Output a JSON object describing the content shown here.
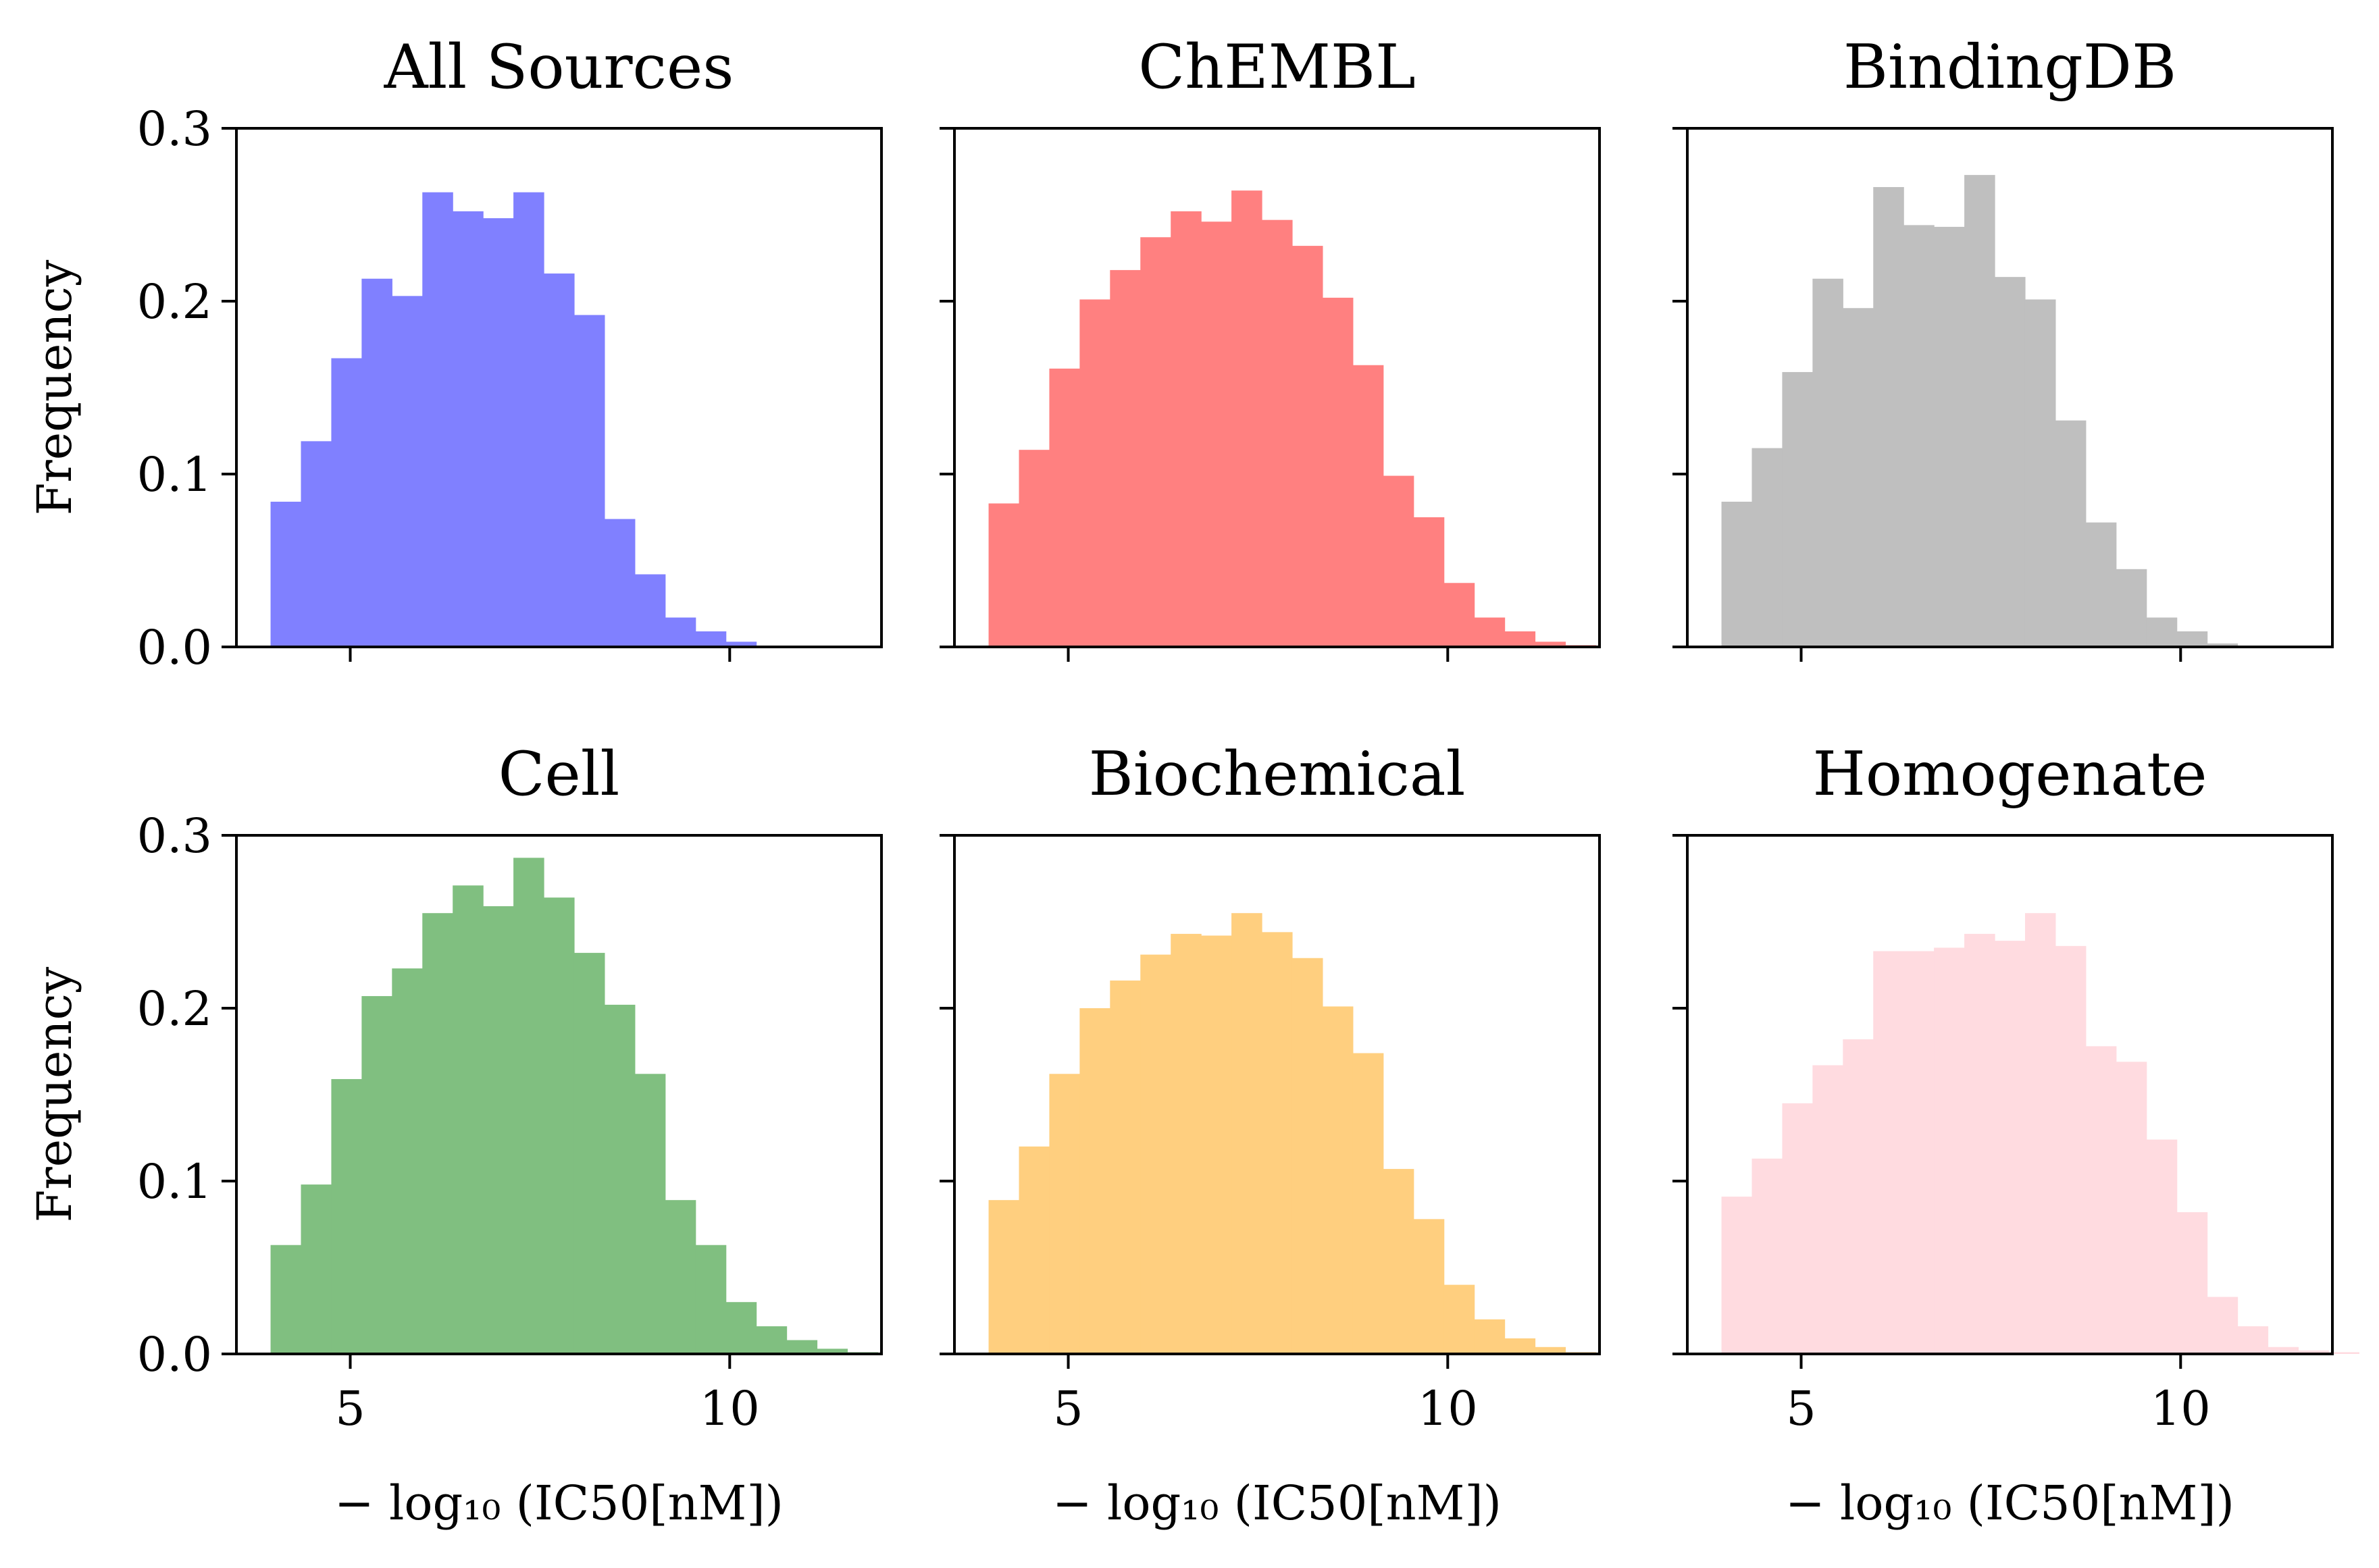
{
  "figure": {
    "bin_start": 3.95,
    "bin_width": 0.4,
    "y_ticks": [
      "0.0",
      "0.1",
      "0.2",
      "0.3"
    ],
    "x_ticks": [
      "5",
      "10"
    ],
    "ylabel": "Frequency",
    "xlabel": "− log₁₀ (IC50[nM])"
  },
  "chart_data": [
    {
      "type": "bar",
      "title": "All Sources",
      "color": "#8080ff",
      "xlim": [
        3.5,
        12
      ],
      "ylim": [
        0,
        0.3
      ],
      "x_ticks": [
        5,
        10
      ],
      "y_ticks": [
        0.0,
        0.1,
        0.2,
        0.3
      ],
      "values": [
        0.084,
        0.119,
        0.167,
        0.213,
        0.203,
        0.263,
        0.252,
        0.248,
        0.263,
        0.216,
        0.192,
        0.074,
        0.042,
        0.017,
        0.009,
        0.003
      ]
    },
    {
      "type": "bar",
      "title": "ChEMBL",
      "color": "#ff8080",
      "xlim": [
        3.5,
        12
      ],
      "ylim": [
        0,
        0.3
      ],
      "x_ticks": [
        5,
        10
      ],
      "y_ticks": [
        0.0,
        0.1,
        0.2,
        0.3
      ],
      "values": [
        0.083,
        0.114,
        0.161,
        0.201,
        0.218,
        0.237,
        0.252,
        0.246,
        0.264,
        0.247,
        0.232,
        0.202,
        0.163,
        0.099,
        0.075,
        0.037,
        0.017,
        0.009,
        0.003,
        0.001
      ]
    },
    {
      "type": "bar",
      "title": "BindingDB",
      "color": "#bfbfbf",
      "xlim": [
        3.5,
        12
      ],
      "ylim": [
        0,
        0.3
      ],
      "x_ticks": [
        5,
        10
      ],
      "y_ticks": [
        0.0,
        0.1,
        0.2,
        0.3
      ],
      "values": [
        0.084,
        0.115,
        0.159,
        0.213,
        0.196,
        0.266,
        0.244,
        0.243,
        0.273,
        0.214,
        0.201,
        0.131,
        0.072,
        0.045,
        0.017,
        0.009,
        0.002
      ]
    },
    {
      "type": "bar",
      "title": "Cell",
      "color": "#80bf80",
      "xlim": [
        3.5,
        12
      ],
      "ylim": [
        0,
        0.3
      ],
      "x_ticks": [
        5,
        10
      ],
      "y_ticks": [
        0.0,
        0.1,
        0.2,
        0.3
      ],
      "values": [
        0.063,
        0.098,
        0.159,
        0.207,
        0.223,
        0.255,
        0.271,
        0.259,
        0.287,
        0.264,
        0.232,
        0.202,
        0.162,
        0.089,
        0.063,
        0.03,
        0.016,
        0.008,
        0.003,
        0.001
      ]
    },
    {
      "type": "bar",
      "title": "Biochemical",
      "color": "#ffcf7f",
      "xlim": [
        3.5,
        12
      ],
      "ylim": [
        0,
        0.3
      ],
      "x_ticks": [
        5,
        10
      ],
      "y_ticks": [
        0.0,
        0.1,
        0.2,
        0.3
      ],
      "values": [
        0.089,
        0.12,
        0.162,
        0.2,
        0.216,
        0.231,
        0.243,
        0.242,
        0.255,
        0.244,
        0.229,
        0.201,
        0.174,
        0.107,
        0.078,
        0.04,
        0.02,
        0.009,
        0.004,
        0.001
      ]
    },
    {
      "type": "bar",
      "title": "Homogenate",
      "color": "#ffdbe0",
      "xlim": [
        3.5,
        12
      ],
      "ylim": [
        0,
        0.3
      ],
      "x_ticks": [
        5,
        10
      ],
      "y_ticks": [
        0.0,
        0.1,
        0.2,
        0.3
      ],
      "values": [
        0.091,
        0.113,
        0.145,
        0.167,
        0.182,
        0.233,
        0.233,
        0.235,
        0.243,
        0.239,
        0.255,
        0.236,
        0.178,
        0.169,
        0.124,
        0.082,
        0.033,
        0.016,
        0.004,
        0.002,
        0.001
      ]
    }
  ]
}
